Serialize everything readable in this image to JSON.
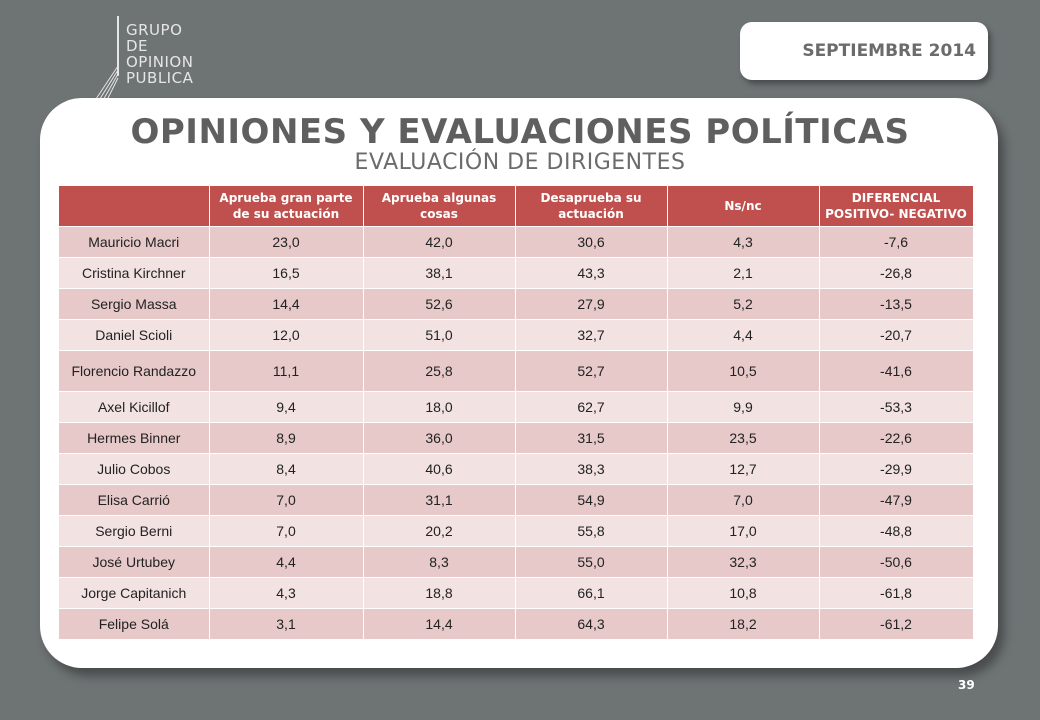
{
  "logo": {
    "lines": [
      "GRUPO",
      "DE",
      "OPINION",
      "PUBLICA"
    ]
  },
  "date_label": "SEPTIEMBRE  2014",
  "title": "OPINIONES Y EVALUACIONES POLÍTICAS",
  "subtitle": "EVALUACIÓN DE DIRIGENTES",
  "table": {
    "headers": [
      "",
      "Aprueba gran parte de su actuación",
      "Aprueba algunas cosas",
      "Desaprueba su actuación",
      "Ns/nc",
      "DIFERENCIAL POSITIVO- NEGATIVO"
    ],
    "rows": [
      [
        "Mauricio Macri",
        "23,0",
        "42,0",
        "30,6",
        "4,3",
        "-7,6"
      ],
      [
        "Cristina Kirchner",
        "16,5",
        "38,1",
        "43,3",
        "2,1",
        "-26,8"
      ],
      [
        "Sergio Massa",
        "14,4",
        "52,6",
        "27,9",
        "5,2",
        "-13,5"
      ],
      [
        "Daniel Scioli",
        "12,0",
        "51,0",
        "32,7",
        "4,4",
        "-20,7"
      ],
      [
        "Florencio Randazzo",
        "11,1",
        "25,8",
        "52,7",
        "10,5",
        "-41,6"
      ],
      [
        "Axel Kicillof",
        "9,4",
        "18,0",
        "62,7",
        "9,9",
        "-53,3"
      ],
      [
        "Hermes Binner",
        "8,9",
        "36,0",
        "31,5",
        "23,5",
        "-22,6"
      ],
      [
        "Julio Cobos",
        "8,4",
        "40,6",
        "38,3",
        "12,7",
        "-29,9"
      ],
      [
        "Elisa Carrió",
        "7,0",
        "31,1",
        "54,9",
        "7,0",
        "-47,9"
      ],
      [
        "Sergio Berni",
        "7,0",
        "20,2",
        "55,8",
        "17,0",
        "-48,8"
      ],
      [
        "José Urtubey",
        "4,4",
        "8,3",
        "55,0",
        "32,3",
        "-50,6"
      ],
      [
        "Jorge Capitanich",
        "4,3",
        "18,8",
        "66,1",
        "10,8",
        "-61,8"
      ],
      [
        "Felipe Solá",
        "3,1",
        "14,4",
        "64,3",
        "18,2",
        "-61,2"
      ]
    ]
  },
  "page_number": "39",
  "colors": {
    "header": "#c0504d",
    "row_odd": "#e6c9c8",
    "row_even": "#f2e3e2",
    "background": "#6e7374"
  }
}
